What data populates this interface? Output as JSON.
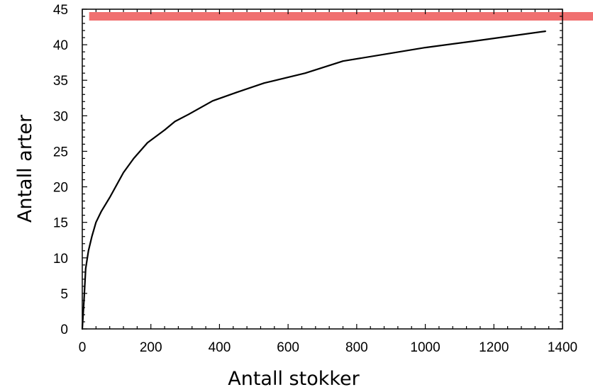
{
  "chart_data": {
    "type": "line",
    "title": "",
    "xlabel": "Antall stokker",
    "ylabel": "Antall arter",
    "xlim": [
      0,
      1400
    ],
    "ylim": [
      0,
      45
    ],
    "xticks": [
      0,
      200,
      400,
      600,
      800,
      1000,
      1200,
      1400
    ],
    "yticks": [
      0,
      5,
      10,
      15,
      20,
      25,
      30,
      35,
      40,
      45
    ],
    "grid": false,
    "legend": "none",
    "series": [
      {
        "color": "#000000",
        "x": [
          0,
          5,
          10,
          18,
          28,
          40,
          55,
          80,
          120,
          150,
          190,
          240,
          270,
          310,
          380,
          450,
          530,
          650,
          760,
          900,
          1000,
          1140,
          1350
        ],
        "y": [
          0,
          4,
          8.5,
          11,
          13,
          15,
          16.5,
          18.5,
          22,
          24,
          26.2,
          28,
          29.2,
          30.2,
          32.1,
          33.3,
          34.6,
          36,
          37.7,
          38.8,
          39.6,
          40.5,
          41.9
        ]
      }
    ],
    "annotation": {
      "type": "horizontal-band",
      "y": 44,
      "x_start": 20,
      "x_end": 1500,
      "color": "#f07070"
    }
  }
}
